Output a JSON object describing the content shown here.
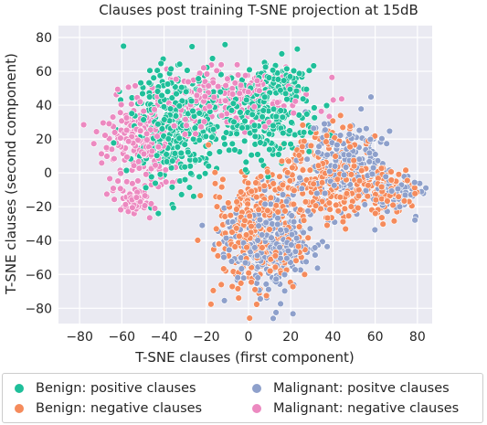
{
  "chart_data": {
    "type": "scatter",
    "title": "Clauses post training T-SNE projection at 15dB",
    "xlabel": "T-SNE clauses (first component)",
    "ylabel": "T-SNE clauses (second component)",
    "xlim": [
      -90,
      87
    ],
    "ylim": [
      -89,
      87
    ],
    "xticks": [
      "-80",
      "-60",
      "-40",
      "-20",
      "0",
      "20",
      "40",
      "60",
      "80"
    ],
    "yticks": [
      "80",
      "60",
      "40",
      "20",
      "0",
      "-20",
      "-40",
      "-60",
      "-80"
    ],
    "grid": true,
    "legend_position": "bottom",
    "series": [
      {
        "name": "Benign: positive clauses",
        "color": "#1fbf9a",
        "clusters": [
          {
            "cx": -35,
            "cy": 28,
            "sx": 14,
            "sy": 22,
            "n": 330
          },
          {
            "cx": 5,
            "cy": 35,
            "sx": 20,
            "sy": 18,
            "n": 260
          },
          {
            "cx": 15,
            "cy": 55,
            "sx": 8,
            "sy": 8,
            "n": 60
          }
        ]
      },
      {
        "name": "Benign: negative clauses",
        "color": "#f58b5c",
        "clusters": [
          {
            "cx": 5,
            "cy": -35,
            "sx": 15,
            "sy": 22,
            "n": 320
          },
          {
            "cx": 40,
            "cy": 0,
            "sx": 15,
            "sy": 18,
            "n": 240
          },
          {
            "cx": 65,
            "cy": -12,
            "sx": 9,
            "sy": 8,
            "n": 80
          }
        ]
      },
      {
        "name": "Malignant: positve clauses",
        "color": "#8ea0cb",
        "clusters": [
          {
            "cx": 10,
            "cy": -40,
            "sx": 14,
            "sy": 20,
            "n": 300
          },
          {
            "cx": 45,
            "cy": 5,
            "sx": 14,
            "sy": 17,
            "n": 220
          },
          {
            "cx": 70,
            "cy": -12,
            "sx": 7,
            "sy": 7,
            "n": 70
          }
        ]
      },
      {
        "name": "Malignant: negative clauses",
        "color": "#ec89c0",
        "clusters": [
          {
            "cx": -50,
            "cy": 20,
            "sx": 12,
            "sy": 18,
            "n": 230
          },
          {
            "cx": -5,
            "cy": 45,
            "sx": 25,
            "sy": 12,
            "n": 220
          },
          {
            "cx": -55,
            "cy": -15,
            "sx": 7,
            "sy": 8,
            "n": 60
          }
        ]
      }
    ]
  }
}
